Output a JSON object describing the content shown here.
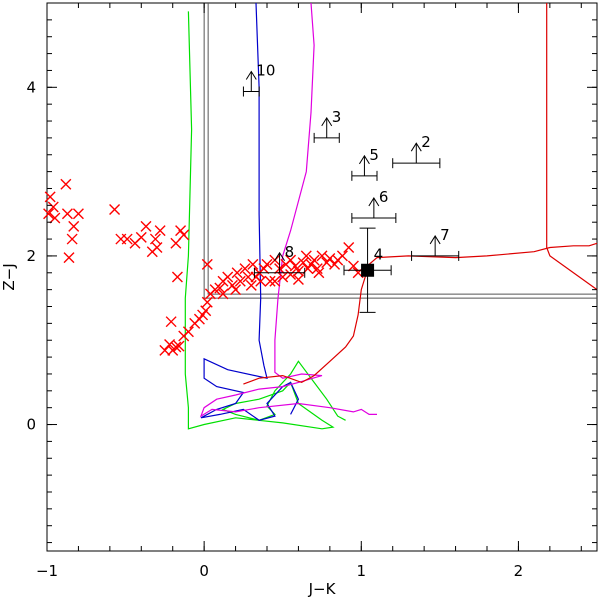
{
  "chart_data": {
    "type": "scatter",
    "title": "",
    "xlabel": "J−K",
    "ylabel": "Z−J",
    "xlim": [
      -1,
      2.5
    ],
    "ylim": [
      -1.5,
      5
    ],
    "xticks": [
      "−1",
      "0",
      "1",
      "2"
    ],
    "xtick_values": [
      -1,
      0,
      1,
      2
    ],
    "yticks": [
      "0",
      "2",
      "4"
    ],
    "ytick_values": [
      0,
      2,
      4
    ],
    "grid": false,
    "colors": {
      "crosses": "#ff0000",
      "green": "#00e000",
      "blue": "#0000cc",
      "magenta": "#e000e0",
      "red": "#dd0000",
      "box": "#000000"
    },
    "selection_box": {
      "x": [
        0,
        2.5
      ],
      "y": [
        1.5,
        5
      ]
    },
    "labelled_points": [
      {
        "label": "2",
        "x": 1.35,
        "y": 3.1,
        "xerr": 0.15,
        "lower_limit": true
      },
      {
        "label": "3",
        "x": 0.78,
        "y": 3.4,
        "xerr": 0.08,
        "lower_limit": true
      },
      {
        "label": "4",
        "x": 1.04,
        "y": 1.83,
        "xerr": 0.15,
        "yerr_low": 0.5,
        "yerr_high": 0.5,
        "lower_limit": false
      },
      {
        "label": "5",
        "x": 1.02,
        "y": 2.95,
        "xerr": 0.08,
        "lower_limit": true
      },
      {
        "label": "6",
        "x": 1.08,
        "y": 2.45,
        "xerr": 0.14,
        "lower_limit": true
      },
      {
        "label": "7",
        "x": 1.47,
        "y": 2.0,
        "xerr": 0.15,
        "lower_limit": true
      },
      {
        "label": "8",
        "x": 0.48,
        "y": 1.8,
        "xerr": 0.16,
        "lower_limit": true
      },
      {
        "label": "10",
        "x": 0.3,
        "y": 3.95,
        "xerr": 0.05,
        "lower_limit": true
      }
    ],
    "crosses": [
      [
        -0.98,
        2.7
      ],
      [
        -0.96,
        2.58
      ],
      [
        -0.99,
        2.5
      ],
      [
        -0.95,
        2.45
      ],
      [
        -0.88,
        2.85
      ],
      [
        -0.87,
        2.5
      ],
      [
        -0.86,
        1.98
      ],
      [
        -0.83,
        2.35
      ],
      [
        -0.8,
        2.5
      ],
      [
        -0.84,
        2.2
      ],
      [
        -0.57,
        2.55
      ],
      [
        -0.53,
        2.2
      ],
      [
        -0.49,
        2.2
      ],
      [
        -0.44,
        2.15
      ],
      [
        -0.4,
        2.22
      ],
      [
        -0.37,
        2.35
      ],
      [
        -0.33,
        2.05
      ],
      [
        -0.31,
        2.2
      ],
      [
        -0.3,
        2.1
      ],
      [
        -0.28,
        2.3
      ],
      [
        -0.15,
        2.3
      ],
      [
        -0.18,
        2.15
      ],
      [
        -0.17,
        1.75
      ],
      [
        -0.13,
        2.25
      ],
      [
        -0.25,
        0.88
      ],
      [
        -0.22,
        0.95
      ],
      [
        -0.2,
        0.88
      ],
      [
        -0.18,
        0.92
      ],
      [
        -0.16,
        0.93
      ],
      [
        -0.21,
        1.22
      ],
      [
        -0.13,
        1.05
      ],
      [
        -0.1,
        1.1
      ],
      [
        -0.06,
        1.2
      ],
      [
        -0.03,
        1.25
      ],
      [
        -0.01,
        1.3
      ],
      [
        0.01,
        1.35
      ],
      [
        0.02,
        1.45
      ],
      [
        0.04,
        1.55
      ],
      [
        0.07,
        1.6
      ],
      [
        0.1,
        1.62
      ],
      [
        0.12,
        1.7
      ],
      [
        0.15,
        1.75
      ],
      [
        0.18,
        1.65
      ],
      [
        0.21,
        1.8
      ],
      [
        0.23,
        1.7
      ],
      [
        0.26,
        1.85
      ],
      [
        0.28,
        1.75
      ],
      [
        0.31,
        1.9
      ],
      [
        0.33,
        1.75
      ],
      [
        0.35,
        1.8
      ],
      [
        0.38,
        1.85
      ],
      [
        0.4,
        1.9
      ],
      [
        0.42,
        1.7
      ],
      [
        0.45,
        1.95
      ],
      [
        0.48,
        1.85
      ],
      [
        0.5,
        1.75
      ],
      [
        0.52,
        1.9
      ],
      [
        0.55,
        1.95
      ],
      [
        0.58,
        1.88
      ],
      [
        0.6,
        1.82
      ],
      [
        0.63,
        1.92
      ],
      [
        0.65,
        2.0
      ],
      [
        0.68,
        1.9
      ],
      [
        0.7,
        1.95
      ],
      [
        0.72,
        1.85
      ],
      [
        0.75,
        2.0
      ],
      [
        0.78,
        1.92
      ],
      [
        0.8,
        1.97
      ],
      [
        0.83,
        1.9
      ],
      [
        0.88,
        2.0
      ],
      [
        0.92,
        2.1
      ],
      [
        0.95,
        1.88
      ],
      [
        0.98,
        1.8
      ],
      [
        0.02,
        1.9
      ],
      [
        0.3,
        1.65
      ],
      [
        0.45,
        1.7
      ],
      [
        0.6,
        1.72
      ],
      [
        0.73,
        1.8
      ],
      [
        0.85,
        1.95
      ],
      [
        0.12,
        1.55
      ],
      [
        0.2,
        1.6
      ],
      [
        0.36,
        1.7
      ],
      [
        0.55,
        1.78
      ],
      [
        0.66,
        1.85
      ]
    ],
    "tracks": {
      "green": [
        [
          -0.1,
          4.9
        ],
        [
          -0.08,
          3.5
        ],
        [
          -0.1,
          2.0
        ],
        [
          -0.12,
          1.5
        ],
        [
          -0.12,
          0.6
        ],
        [
          -0.1,
          0.2
        ],
        [
          -0.1,
          -0.05
        ],
        [
          0.0,
          0.0
        ],
        [
          0.2,
          0.08
        ],
        [
          0.5,
          0.02
        ],
        [
          0.75,
          -0.05
        ],
        [
          0.82,
          -0.03
        ],
        [
          0.75,
          0.05
        ],
        [
          0.6,
          0.25
        ],
        [
          0.55,
          0.5
        ],
        [
          0.5,
          0.4
        ],
        [
          0.35,
          0.3
        ],
        [
          0.2,
          0.25
        ],
        [
          0.12,
          0.18
        ],
        [
          0.2,
          0.12
        ],
        [
          0.35,
          0.05
        ],
        [
          0.45,
          0.12
        ],
        [
          0.4,
          0.22
        ],
        [
          0.45,
          0.4
        ],
        [
          0.55,
          0.6
        ],
        [
          0.6,
          0.75
        ],
        [
          0.68,
          0.55
        ],
        [
          0.78,
          0.3
        ],
        [
          0.85,
          0.1
        ],
        [
          0.9,
          0.05
        ]
      ],
      "blue": [
        [
          0.33,
          5.0
        ],
        [
          0.35,
          4.0
        ],
        [
          0.35,
          2.5
        ],
        [
          0.36,
          1.5
        ],
        [
          0.35,
          1.0
        ],
        [
          0.38,
          0.7
        ],
        [
          0.4,
          0.55
        ],
        [
          0.15,
          0.65
        ],
        [
          0.0,
          0.78
        ],
        [
          0.0,
          0.55
        ],
        [
          0.08,
          0.45
        ],
        [
          0.25,
          0.38
        ],
        [
          0.2,
          0.25
        ],
        [
          0.08,
          0.18
        ],
        [
          -0.02,
          0.08
        ],
        [
          0.1,
          0.12
        ],
        [
          0.25,
          0.18
        ],
        [
          0.35,
          0.05
        ],
        [
          0.45,
          0.1
        ],
        [
          0.4,
          0.25
        ],
        [
          0.5,
          0.45
        ],
        [
          0.55,
          0.5
        ],
        [
          0.6,
          0.3
        ],
        [
          0.55,
          0.12
        ]
      ],
      "magenta": [
        [
          0.68,
          5.0
        ],
        [
          0.7,
          4.5
        ],
        [
          0.68,
          3.7
        ],
        [
          0.65,
          3.0
        ],
        [
          0.55,
          2.3
        ],
        [
          0.5,
          2.0
        ],
        [
          0.47,
          1.5
        ],
        [
          0.45,
          1.0
        ],
        [
          0.45,
          0.62
        ],
        [
          0.5,
          0.55
        ],
        [
          0.62,
          0.6
        ],
        [
          0.75,
          0.58
        ],
        [
          0.6,
          0.5
        ],
        [
          0.5,
          0.45
        ],
        [
          0.35,
          0.42
        ],
        [
          0.2,
          0.35
        ],
        [
          0.08,
          0.3
        ],
        [
          0.0,
          0.2
        ],
        [
          -0.02,
          0.1
        ],
        [
          0.05,
          0.18
        ],
        [
          0.2,
          0.15
        ],
        [
          0.35,
          0.2
        ],
        [
          0.6,
          0.25
        ],
        [
          0.8,
          0.2
        ],
        [
          0.95,
          0.15
        ],
        [
          1.0,
          0.18
        ],
        [
          1.05,
          0.12
        ],
        [
          1.1,
          0.12
        ]
      ],
      "red": [
        [
          0.25,
          0.48
        ],
        [
          0.35,
          0.55
        ],
        [
          0.5,
          0.58
        ],
        [
          0.62,
          0.5
        ],
        [
          0.7,
          0.58
        ],
        [
          0.8,
          0.75
        ],
        [
          0.9,
          0.92
        ],
        [
          0.95,
          1.05
        ],
        [
          0.98,
          1.3
        ],
        [
          1.0,
          1.6
        ],
        [
          1.05,
          1.9
        ],
        [
          1.1,
          1.98
        ],
        [
          1.3,
          2.0
        ],
        [
          1.6,
          1.98
        ],
        [
          1.8,
          2.0
        ],
        [
          2.1,
          2.05
        ],
        [
          2.2,
          2.1
        ],
        [
          2.35,
          2.12
        ],
        [
          2.45,
          2.12
        ],
        [
          2.5,
          2.15
        ]
      ],
      "red_vertical": [
        [
          2.18,
          5.0
        ],
        [
          2.18,
          4.8
        ],
        [
          2.18,
          2.1
        ],
        [
          2.2,
          2.0
        ],
        [
          2.5,
          1.6
        ]
      ]
    }
  }
}
